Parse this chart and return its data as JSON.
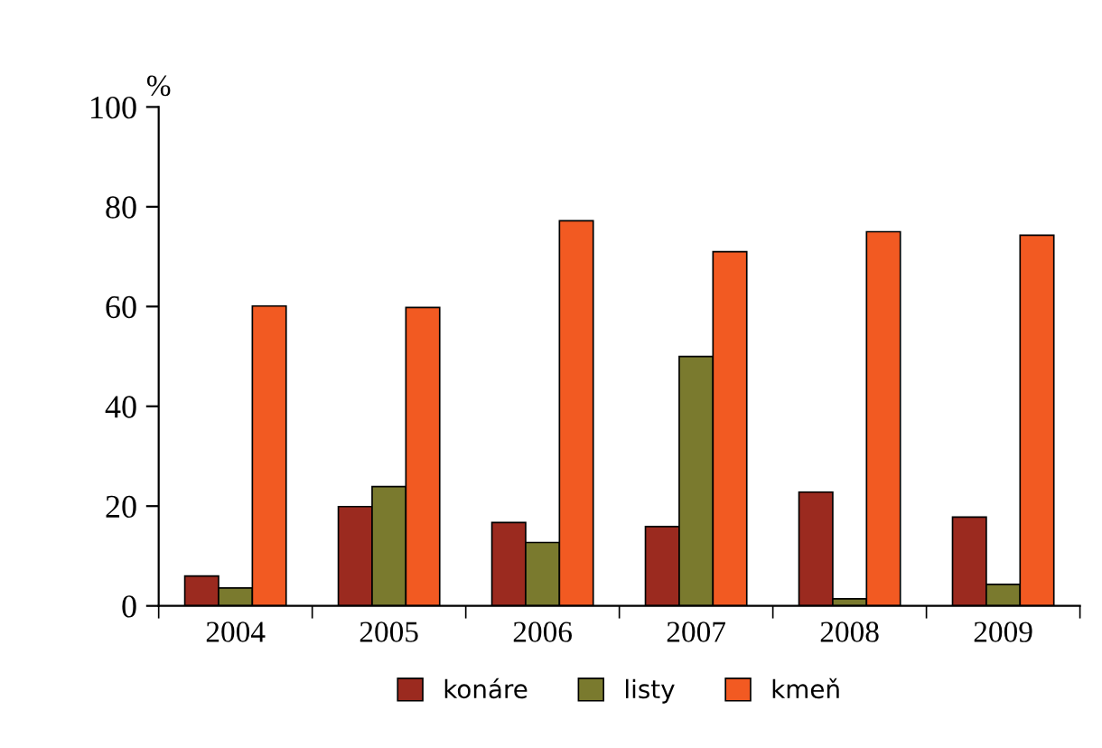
{
  "chart_data": {
    "type": "bar",
    "ylabel": "%",
    "categories": [
      "2004",
      "2005",
      "2006",
      "2007",
      "2008",
      "2009"
    ],
    "series": [
      {
        "name": "konáre",
        "color": "#9b2a1f",
        "values": [
          6,
          19.9,
          16.7,
          15.9,
          22.8,
          17.8
        ]
      },
      {
        "name": "listy",
        "color": "#7a7a2e",
        "values": [
          3.6,
          23.9,
          12.7,
          50,
          1.4,
          4.3
        ]
      },
      {
        "name": "kmeň",
        "color": "#f25a22",
        "values": [
          60.1,
          59.8,
          77.2,
          71,
          75,
          74.3
        ]
      }
    ],
    "ylim": [
      0,
      100
    ],
    "yticks": [
      0,
      20,
      40,
      60,
      80,
      100
    ],
    "grid": false,
    "legend": "bottom"
  }
}
